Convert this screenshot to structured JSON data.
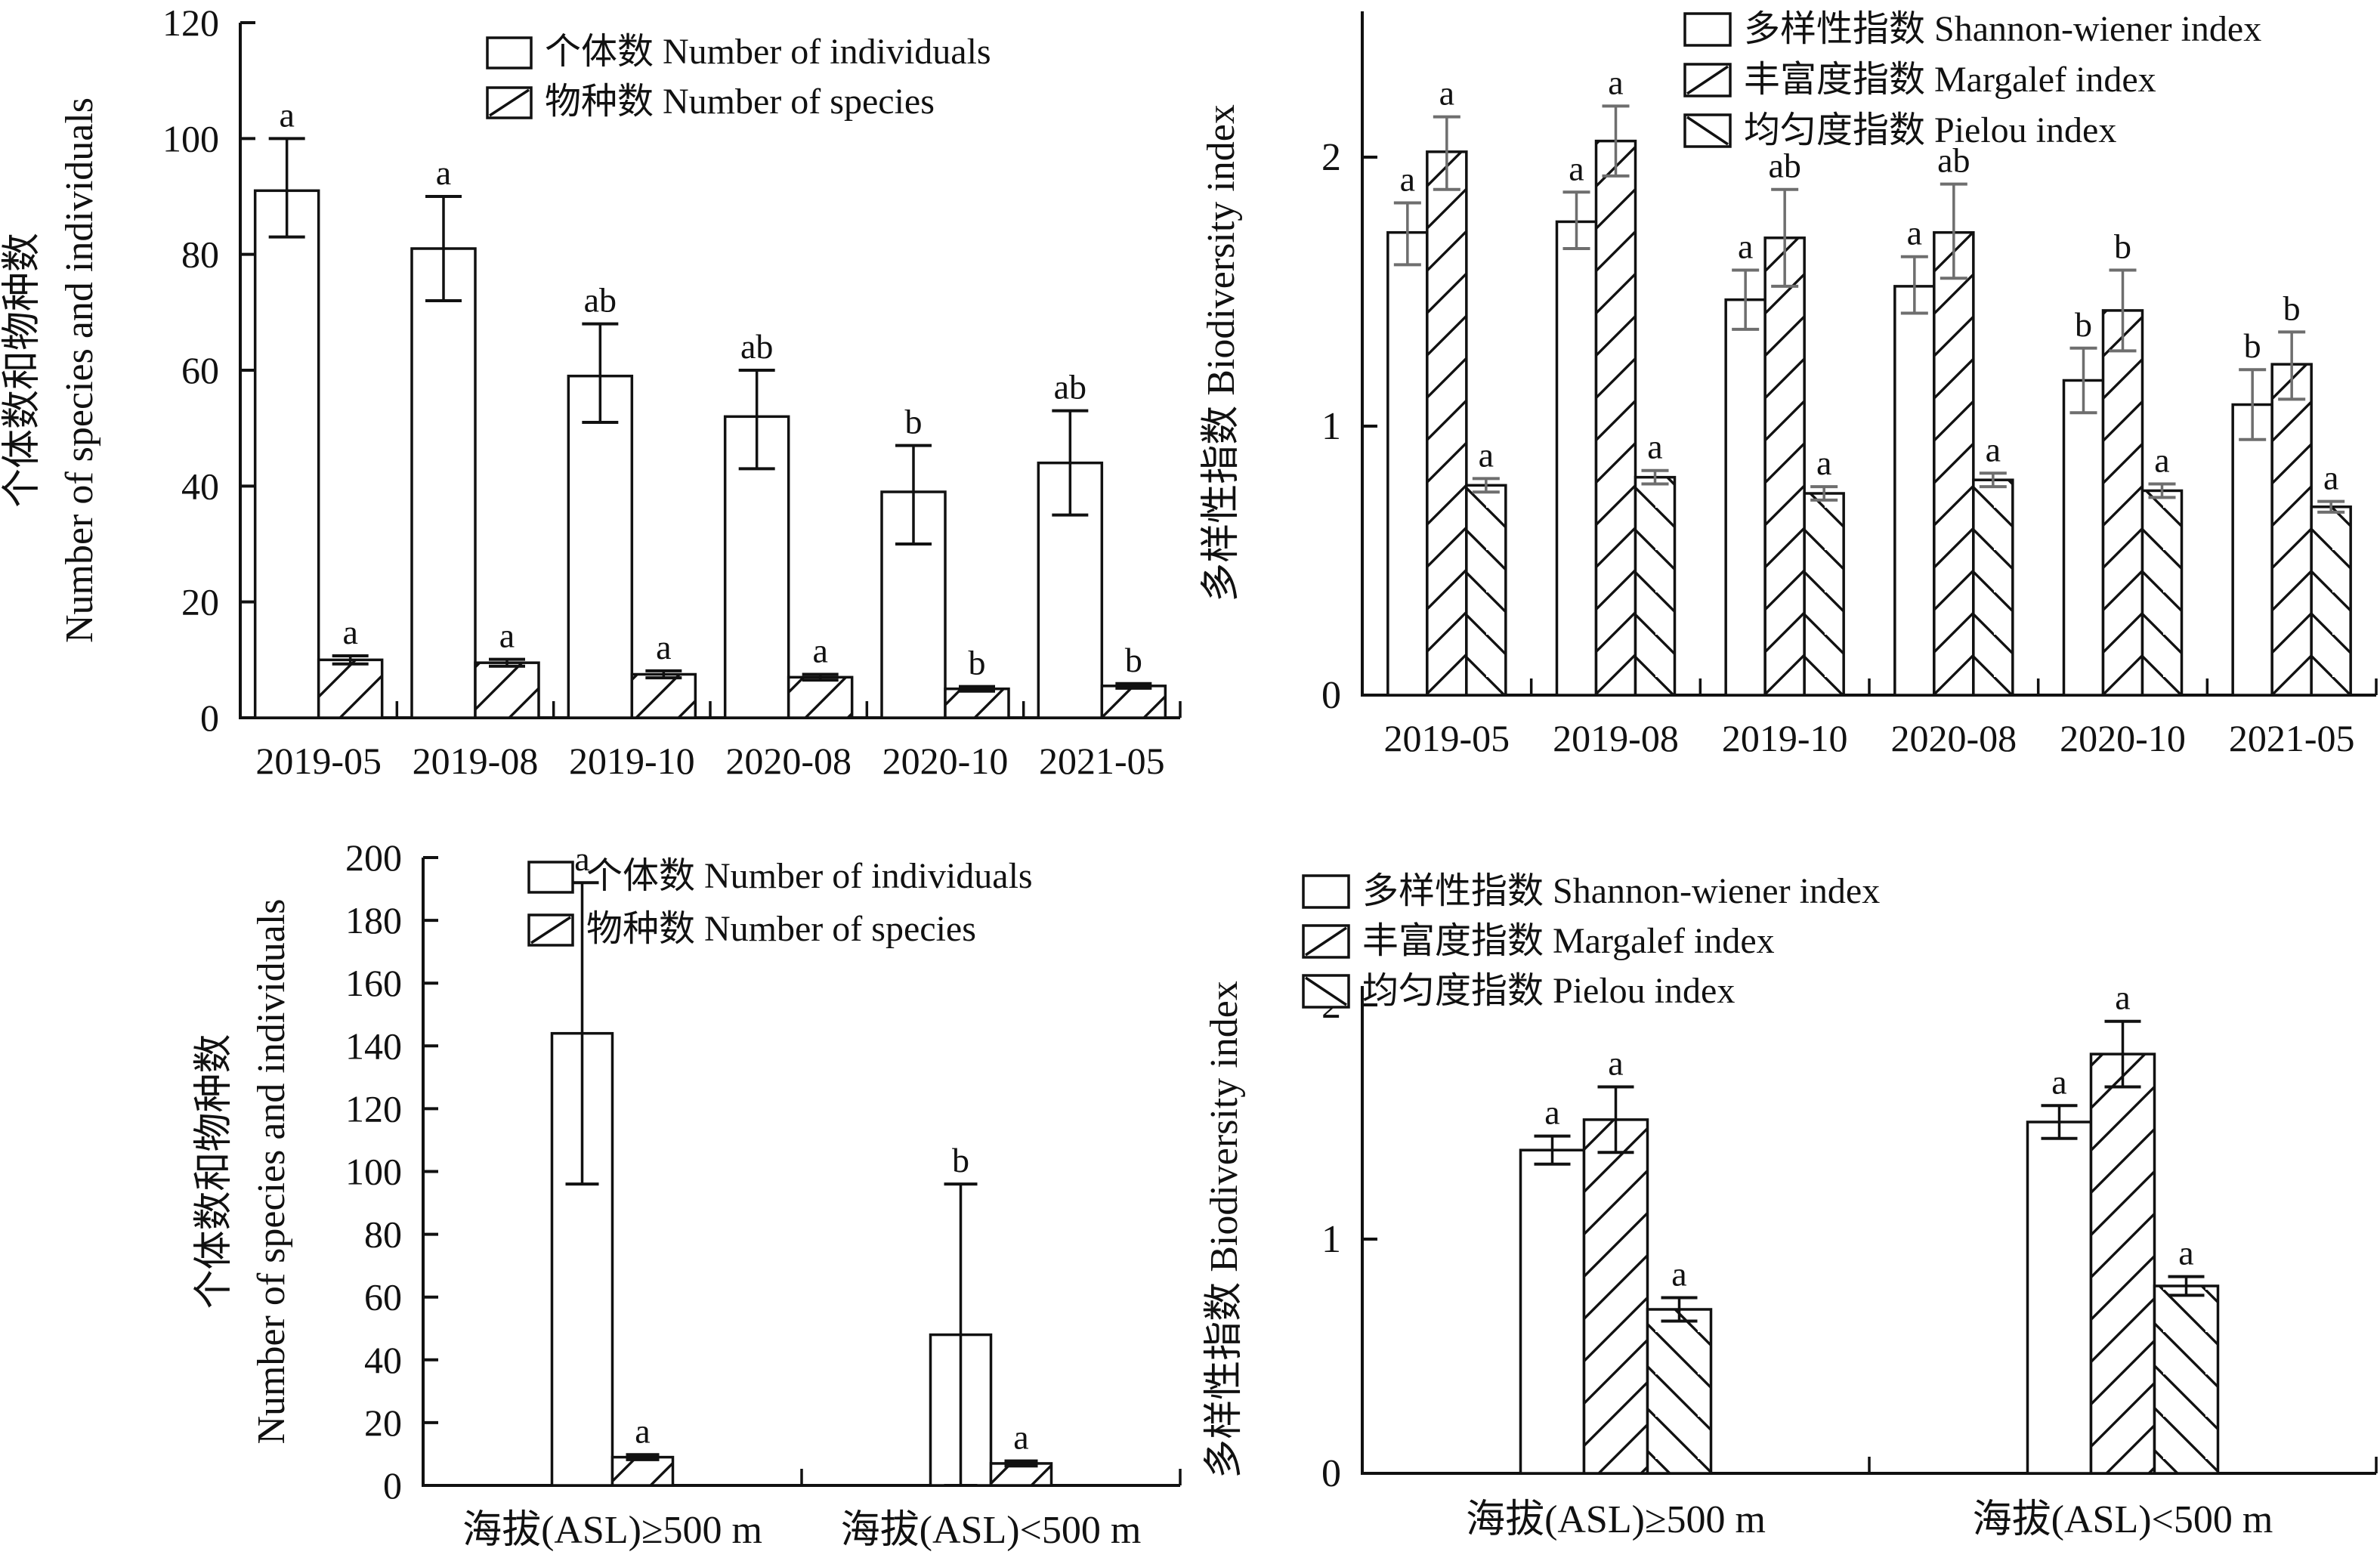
{
  "figure": {
    "background": "#ffffff",
    "axis_color": "#111111",
    "text_color": "#111111",
    "error_bar_color_top_right": "#6e6e6e",
    "error_bar_color_default": "#111111"
  },
  "chart_data": [
    {
      "id": "species-individuals-by-survey-date",
      "type": "bar",
      "position": "top-left",
      "ylabel_zh": "个体数和物种数",
      "ylabel_en": "Number of species and individuals",
      "xlabel": "",
      "ylim": [
        0,
        120
      ],
      "yticks": [
        0,
        20,
        40,
        60,
        80,
        100,
        120
      ],
      "grid": false,
      "legend_position": "top-right-inside",
      "categories": [
        "2019-05",
        "2019-08",
        "2019-10",
        "2020-08",
        "2020-10",
        "2021-05"
      ],
      "series": [
        {
          "name_zh": "个体数",
          "name_en": "Number of individuals",
          "pattern": "plain",
          "values": [
            91,
            81,
            59,
            52,
            39,
            44
          ],
          "err_low": [
            83,
            72,
            51,
            43,
            30,
            35
          ],
          "err_high": [
            100,
            90,
            68,
            60,
            47,
            53
          ],
          "sig_letters": [
            "a",
            "a",
            "ab",
            "ab",
            "b",
            "ab"
          ]
        },
        {
          "name_zh": "物种数",
          "name_en": "Number of species",
          "pattern": "hatch-forward",
          "values": [
            10,
            9.5,
            7.5,
            7,
            5,
            5.5
          ],
          "err_low": [
            9.3,
            8.9,
            6.9,
            6.5,
            4.6,
            5.1
          ],
          "err_high": [
            10.7,
            10.1,
            8.1,
            7.5,
            5.4,
            5.9
          ],
          "sig_letters": [
            "a",
            "a",
            "a",
            "a",
            "b",
            "b"
          ]
        }
      ]
    },
    {
      "id": "biodiversity-index-by-survey-date",
      "type": "bar",
      "position": "top-right",
      "ylabel_zh": "多样性指数",
      "ylabel_en": "Biodiversity index",
      "xlabel": "",
      "ylim": [
        0,
        2.54
      ],
      "yticks": [
        0,
        1,
        2
      ],
      "grid": false,
      "legend_position": "top-right-inside",
      "categories": [
        "2019-05",
        "2019-08",
        "2019-10",
        "2020-08",
        "2020-10",
        "2021-05"
      ],
      "series": [
        {
          "name_zh": "多样性指数",
          "name_en": "Shannon-wiener index",
          "pattern": "plain",
          "values": [
            1.72,
            1.76,
            1.47,
            1.52,
            1.17,
            1.08
          ],
          "err_low": [
            1.6,
            1.66,
            1.36,
            1.42,
            1.05,
            0.95
          ],
          "err_high": [
            1.83,
            1.87,
            1.58,
            1.63,
            1.29,
            1.21
          ],
          "sig_letters": [
            "a",
            "a",
            "a",
            "a",
            "b",
            "b"
          ]
        },
        {
          "name_zh": "丰富度指数",
          "name_en": "Margalef index",
          "pattern": "hatch-forward",
          "values": [
            2.02,
            2.06,
            1.7,
            1.72,
            1.43,
            1.23
          ],
          "err_low": [
            1.88,
            1.93,
            1.52,
            1.55,
            1.28,
            1.1
          ],
          "err_high": [
            2.15,
            2.19,
            1.88,
            1.9,
            1.58,
            1.35
          ],
          "sig_letters": [
            "a",
            "a",
            "ab",
            "ab",
            "b",
            "b"
          ]
        },
        {
          "name_zh": "均匀度指数",
          "name_en": "Pielou index",
          "pattern": "hatch-back",
          "values": [
            0.78,
            0.81,
            0.75,
            0.8,
            0.76,
            0.7
          ],
          "err_low": [
            0.755,
            0.785,
            0.725,
            0.775,
            0.735,
            0.68
          ],
          "err_high": [
            0.805,
            0.835,
            0.775,
            0.825,
            0.785,
            0.72
          ],
          "sig_letters": [
            "a",
            "a",
            "a",
            "a",
            "a",
            "a"
          ]
        }
      ]
    },
    {
      "id": "species-individuals-by-altitude",
      "type": "bar",
      "position": "bottom-left",
      "ylabel_zh": "个体数和物种数",
      "ylabel_en": "Number of species and individuals",
      "xlabel": "",
      "ylim": [
        0,
        200
      ],
      "yticks": [
        0,
        20,
        40,
        60,
        80,
        100,
        120,
        140,
        160,
        180,
        200
      ],
      "grid": false,
      "legend_position": "top-right-inside",
      "categories": [
        "海拔(ASL)≥500 m",
        "海拔(ASL)<500 m"
      ],
      "series": [
        {
          "name_zh": "个体数",
          "name_en": "Number of individuals",
          "pattern": "plain",
          "values": [
            144,
            48
          ],
          "err_low": [
            96,
            0
          ],
          "err_high": [
            192,
            96
          ],
          "sig_letters": [
            "a",
            "b"
          ]
        },
        {
          "name_zh": "物种数",
          "name_en": "Number of species",
          "pattern": "hatch-forward",
          "values": [
            9,
            7
          ],
          "err_low": [
            8.2,
            6.2
          ],
          "err_high": [
            9.8,
            7.8
          ],
          "sig_letters": [
            "a",
            "a"
          ]
        }
      ]
    },
    {
      "id": "biodiversity-index-by-altitude",
      "type": "bar",
      "position": "bottom-right",
      "ylabel_zh": "多样性指数",
      "ylabel_en": "Biodiversity index",
      "xlabel": "",
      "ylim": [
        0,
        2.08
      ],
      "yticks": [
        0,
        1,
        2
      ],
      "grid": false,
      "legend_position": "top-left-inside",
      "categories": [
        "海拔(ASL)≥500 m",
        "海拔(ASL)<500 m"
      ],
      "series": [
        {
          "name_zh": "多样性指数",
          "name_en": "Shannon-wiener index",
          "pattern": "plain",
          "values": [
            1.38,
            1.5
          ],
          "err_low": [
            1.32,
            1.43
          ],
          "err_high": [
            1.44,
            1.57
          ],
          "sig_letters": [
            "a",
            "a"
          ]
        },
        {
          "name_zh": "丰富度指数",
          "name_en": "Margalef index",
          "pattern": "hatch-forward",
          "values": [
            1.51,
            1.79
          ],
          "err_low": [
            1.37,
            1.65
          ],
          "err_high": [
            1.65,
            1.93
          ],
          "sig_letters": [
            "a",
            "a"
          ]
        },
        {
          "name_zh": "均匀度指数",
          "name_en": "Pielou index",
          "pattern": "hatch-back",
          "values": [
            0.7,
            0.8
          ],
          "err_low": [
            0.65,
            0.76
          ],
          "err_high": [
            0.75,
            0.84
          ],
          "sig_letters": [
            "a",
            "a"
          ]
        }
      ]
    }
  ]
}
